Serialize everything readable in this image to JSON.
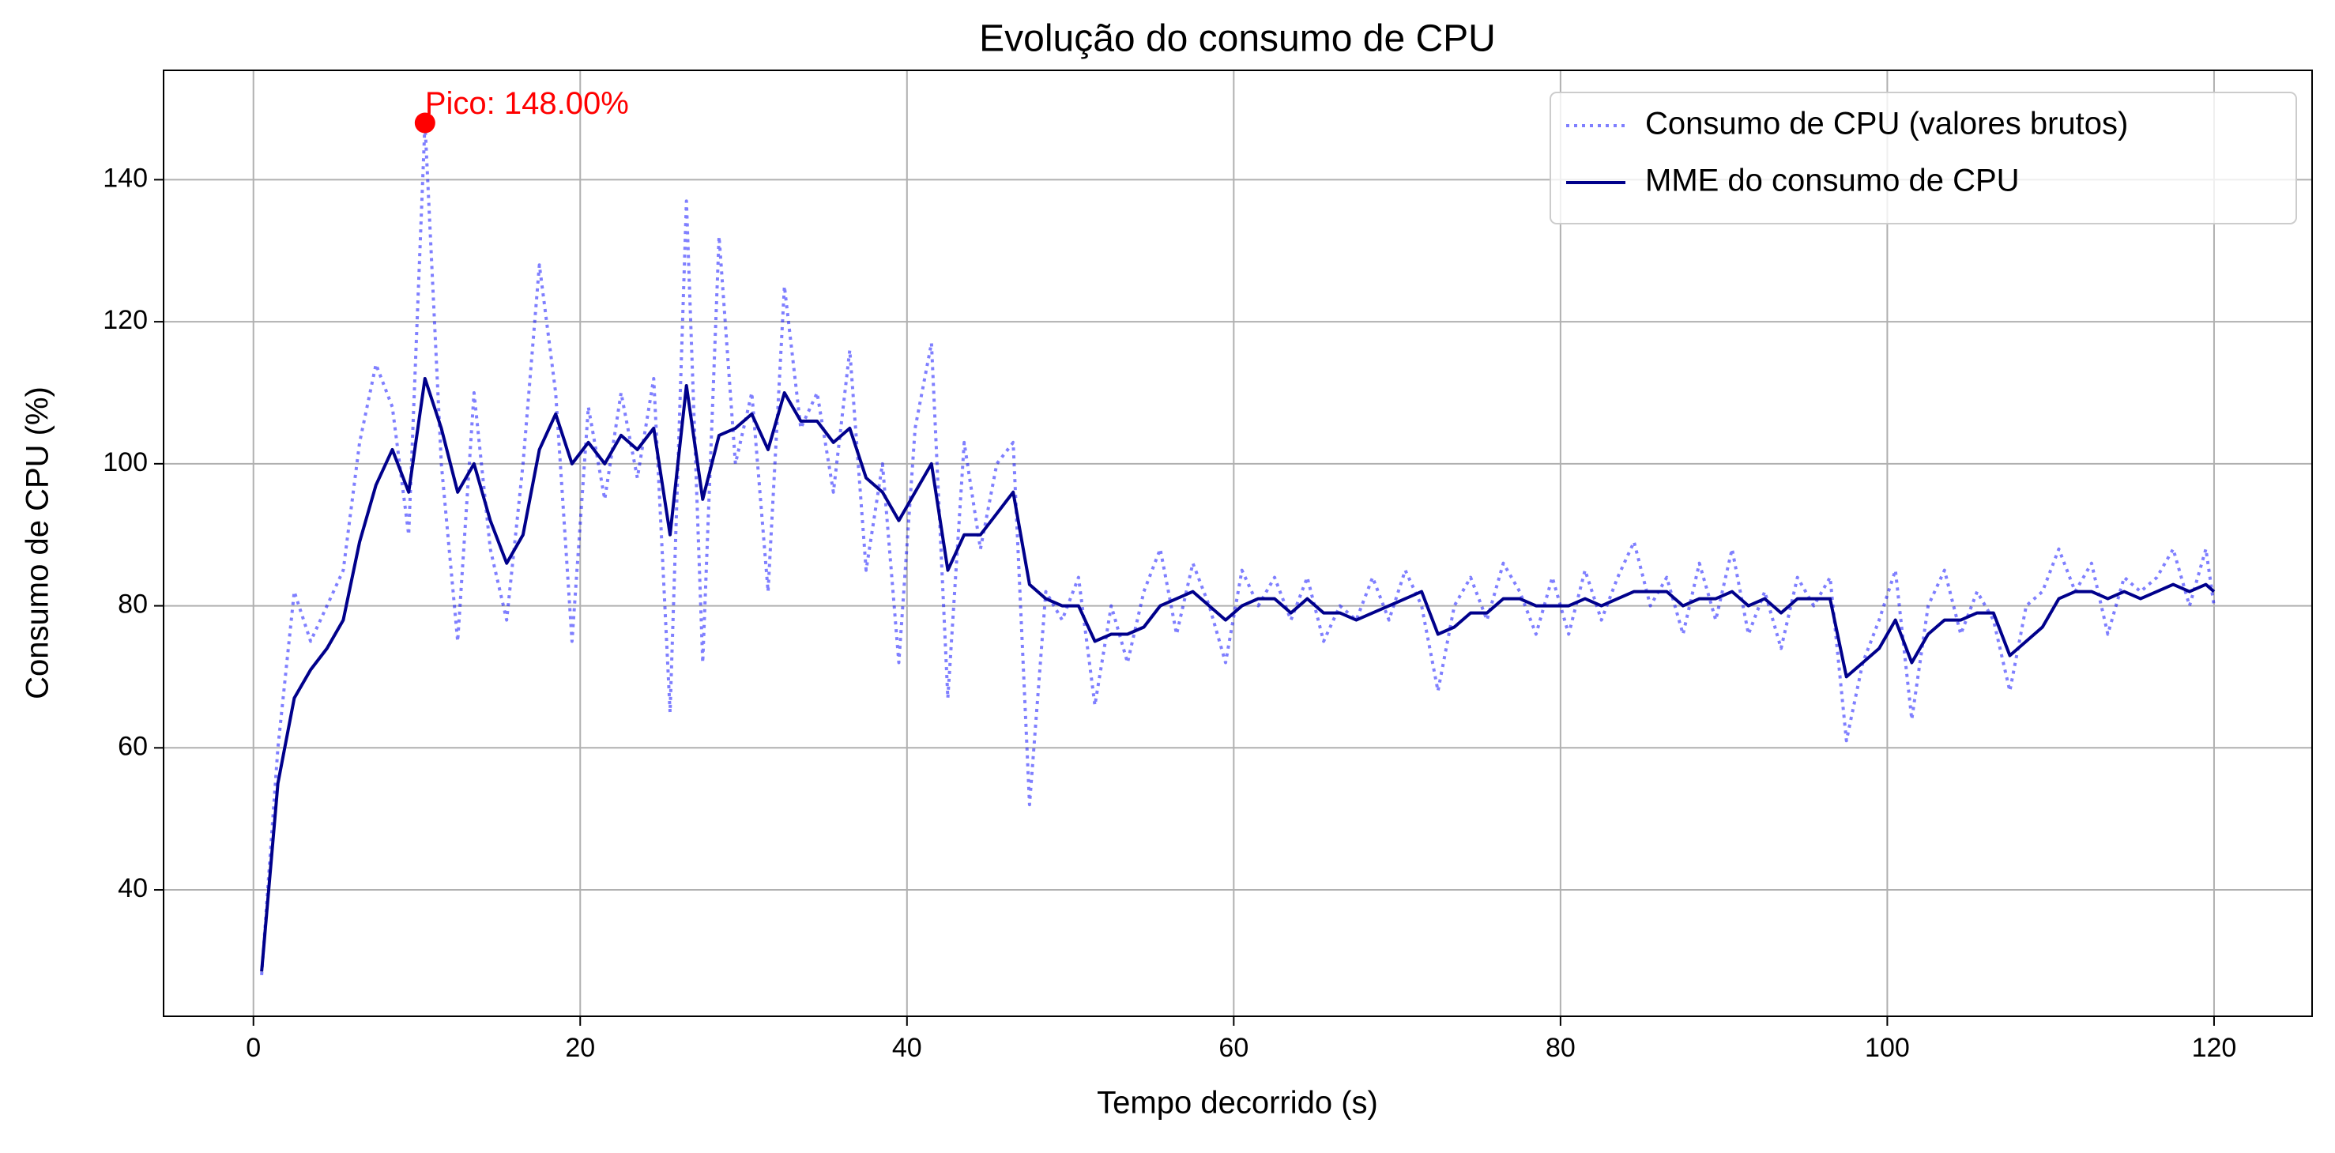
{
  "chart_data": {
    "type": "line",
    "title": "Evolução do consumo de CPU",
    "xlabel": "Tempo decorrido (s)",
    "ylabel": "Consumo de CPU (%)",
    "x": [
      0.5,
      1.5,
      2.5,
      3.5,
      4.5,
      5.5,
      6.5,
      7.5,
      8.5,
      9.5,
      10.5,
      11.5,
      12.5,
      13.5,
      14.5,
      15.5,
      16.5,
      17.5,
      18.5,
      19.5,
      20.5,
      21.5,
      22.5,
      23.5,
      24.5,
      25.5,
      26.5,
      27.5,
      28.5,
      29.5,
      30.5,
      31.5,
      32.5,
      33.5,
      34.5,
      35.5,
      36.5,
      37.5,
      38.5,
      39.5,
      40.5,
      41.5,
      42.5,
      43.5,
      44.5,
      45.5,
      46.5,
      47.5,
      48.5,
      49.5,
      50.5,
      51.5,
      52.5,
      53.5,
      54.5,
      55.5,
      56.5,
      57.5,
      58.5,
      59.5,
      60.5,
      61.5,
      62.5,
      63.5,
      64.5,
      65.5,
      66.5,
      67.5,
      68.5,
      69.5,
      70.5,
      71.5,
      72.5,
      73.5,
      74.5,
      75.5,
      76.5,
      77.5,
      78.5,
      79.5,
      80.5,
      81.5,
      82.5,
      83.5,
      84.5,
      85.5,
      86.5,
      87.5,
      88.5,
      89.5,
      90.5,
      91.5,
      92.5,
      93.5,
      94.5,
      95.5,
      96.5,
      97.5,
      98.5,
      99.5,
      100.5,
      101.5,
      102.5,
      103.5,
      104.5,
      105.5,
      106.5,
      107.5,
      108.5,
      109.5,
      110.5,
      111.5,
      112.5,
      113.5,
      114.5,
      115.5,
      116.5,
      117.5,
      118.5,
      119.5,
      120
    ],
    "series": [
      {
        "name": "Consumo de CPU (valores brutos)",
        "color": "#0000ff",
        "opacity": 0.5,
        "dash": "dotted",
        "values": [
          28,
          60,
          82,
          75,
          80,
          85,
          103,
          114,
          108,
          90,
          148,
          100,
          75,
          110,
          88,
          78,
          100,
          128,
          110,
          75,
          108,
          95,
          110,
          98,
          112,
          65,
          137,
          72,
          132,
          100,
          110,
          82,
          125,
          105,
          110,
          96,
          116,
          85,
          100,
          72,
          105,
          117,
          67,
          103,
          88,
          100,
          103,
          52,
          82,
          78,
          84,
          66,
          80,
          72,
          82,
          88,
          76,
          86,
          80,
          72,
          85,
          80,
          84,
          78,
          84,
          75,
          80,
          78,
          84,
          78,
          85,
          80,
          68,
          80,
          84,
          78,
          86,
          82,
          76,
          84,
          76,
          85,
          78,
          84,
          89,
          80,
          84,
          76,
          86,
          78,
          88,
          76,
          82,
          74,
          84,
          80,
          84,
          61,
          72,
          78,
          85,
          64,
          80,
          85,
          76,
          82,
          78,
          68,
          80,
          82,
          88,
          82,
          86,
          76,
          84,
          82,
          84,
          88,
          80,
          88,
          80
        ]
      },
      {
        "name": "MME do consumo de CPU",
        "color": "#00008b",
        "opacity": 1,
        "dash": "solid",
        "values": [
          28.5,
          55,
          67,
          71,
          74,
          78,
          89,
          97,
          102,
          96,
          112,
          105,
          96,
          100,
          92,
          86,
          90,
          102,
          107,
          100,
          103,
          100,
          104,
          102,
          105,
          90,
          111,
          95,
          104,
          105,
          107,
          102,
          110,
          106,
          106,
          103,
          105,
          98,
          96,
          92,
          96,
          100,
          85,
          90,
          90,
          93,
          96,
          83,
          81,
          80,
          80,
          75,
          76,
          76,
          77,
          80,
          81,
          82,
          80,
          78,
          80,
          81,
          81,
          79,
          81,
          79,
          79,
          78,
          79,
          80,
          81,
          82,
          76,
          77,
          79,
          79,
          81,
          81,
          80,
          80,
          80,
          81,
          80,
          81,
          82,
          82,
          82,
          80,
          81,
          81,
          82,
          80,
          81,
          79,
          81,
          81,
          81,
          70,
          72,
          74,
          78,
          72,
          76,
          78,
          78,
          79,
          79,
          73,
          75,
          77,
          81,
          82,
          82,
          81,
          82,
          81,
          82,
          83,
          82,
          83,
          82
        ]
      }
    ],
    "annotation": {
      "text": "Pico: 148.00%",
      "x": 10.5,
      "y": 148,
      "color": "#ff0000"
    },
    "xlim": [
      -5.5,
      126
    ],
    "ylim": [
      22.2,
      155.4
    ],
    "xticks": [
      0,
      20,
      40,
      60,
      80,
      100,
      120
    ],
    "yticks": [
      40,
      60,
      80,
      100,
      120,
      140
    ],
    "grid": true,
    "legend": "upper right"
  }
}
